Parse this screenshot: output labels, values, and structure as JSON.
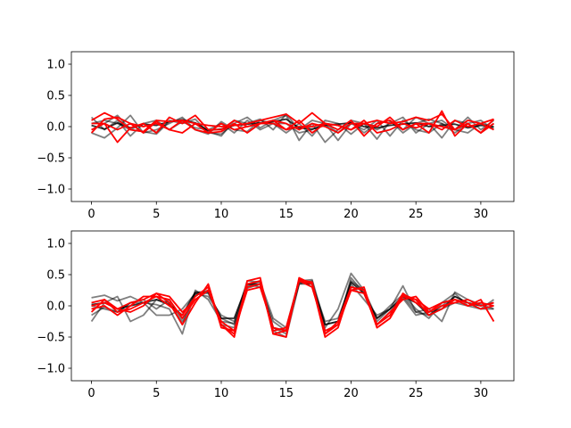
{
  "chart_data": [
    {
      "type": "line",
      "xlim": [
        -1.55,
        32.55
      ],
      "ylim": [
        -1.2,
        1.2
      ],
      "xticks": [
        0,
        5,
        10,
        15,
        20,
        25,
        30
      ],
      "xtick_labels": [
        "0",
        "5",
        "10",
        "15",
        "20",
        "25",
        "30"
      ],
      "yticks": [
        1.0,
        0.5,
        0.0,
        -0.5,
        -1.0
      ],
      "ytick_labels": [
        "1.0",
        "0.5",
        "0.0",
        "−0.5",
        "−1.0"
      ],
      "x": [
        0,
        1,
        2,
        3,
        4,
        5,
        6,
        7,
        8,
        9,
        10,
        11,
        12,
        13,
        14,
        15,
        16,
        17,
        18,
        19,
        20,
        21,
        22,
        23,
        24,
        25,
        26,
        27,
        28,
        29,
        30,
        31
      ],
      "series": [
        {
          "color": "#000000",
          "opacity": 0.5,
          "values": [
            0.15,
            -0.05,
            0.1,
            -0.15,
            0.05,
            -0.1,
            0.1,
            0.05,
            0.12,
            -0.1,
            -0.12,
            0.05,
            0.15,
            -0.02,
            0.1,
            0.18,
            -0.22,
            0.05,
            -0.25,
            -0.05,
            0.1,
            0.05,
            -0.2,
            0.08,
            -0.05,
            0.15,
            0.05,
            -0.18,
            0.1,
            0.05,
            -0.1,
            0.05
          ]
        },
        {
          "color": "#000000",
          "opacity": 0.5,
          "values": [
            -0.1,
            -0.18,
            -0.02,
            0.18,
            -0.1,
            -0.05,
            0.05,
            0.15,
            -0.05,
            -0.12,
            0.08,
            -0.05,
            -0.08,
            0.1,
            0.05,
            0.05,
            -0.1,
            -0.05,
            0.05,
            -0.22,
            0.05,
            -0.05,
            0.1,
            -0.15,
            0.1,
            -0.05,
            -0.1,
            0.05,
            -0.05,
            0.15,
            -0.05,
            0.1
          ]
        },
        {
          "color": "#000000",
          "opacity": 0.5,
          "values": [
            0.05,
            0.1,
            0.05,
            -0.05,
            -0.08,
            -0.12,
            0.08,
            0.12,
            0.05,
            -0.08,
            -0.15,
            0.1,
            0.05,
            0.12,
            -0.05,
            0.2,
            -0.05,
            0.1,
            0.05,
            -0.1,
            0.08,
            -0.1,
            0.05,
            0.1,
            -0.1,
            0.05,
            0.12,
            0.05,
            -0.1,
            0.05,
            0.1,
            -0.05
          ]
        },
        {
          "color": "#000000",
          "opacity": 0.5,
          "values": [
            -0.05,
            0.05,
            0.18,
            -0.05,
            0.05,
            0.1,
            -0.05,
            0.08,
            -0.02,
            -0.05,
            0.05,
            -0.1,
            0.1,
            -0.05,
            0.05,
            -0.1,
            0.05,
            -0.15,
            0.1,
            0.05,
            -0.12,
            0.05,
            -0.05,
            0.05,
            0.15,
            -0.1,
            0.05,
            0.1,
            -0.05,
            -0.1,
            0.05,
            -0.02
          ]
        },
        {
          "color": "#000000",
          "opacity": 0.8,
          "values": [
            0.02,
            -0.04,
            0.06,
            -0.02,
            0.04,
            0.02,
            0.08,
            0.1,
            0.06,
            -0.06,
            -0.04,
            0.02,
            0.04,
            0.06,
            0.08,
            0.12,
            -0.02,
            -0.04,
            0.02,
            0.04,
            0.06,
            0.0,
            -0.02,
            0.02,
            0.04,
            0.06,
            0.0,
            0.02,
            0.04,
            -0.02,
            0.02,
            0.0
          ]
        },
        {
          "color": "#ff0000",
          "opacity": 1,
          "values": [
            0.1,
            0.22,
            0.12,
            -0.05,
            -0.08,
            0.1,
            0.08,
            0.1,
            0.05,
            0.02,
            0.0,
            0.02,
            0.05,
            0.1,
            0.15,
            0.2,
            0.05,
            0.22,
            0.05,
            0.02,
            -0.05,
            0.05,
            0.1,
            0.05,
            0.08,
            0.15,
            0.1,
            0.2,
            -0.05,
            0.1,
            0.05,
            0.12
          ]
        },
        {
          "color": "#ff0000",
          "opacity": 1,
          "values": [
            -0.1,
            0.12,
            0.15,
            0.05,
            0.0,
            0.05,
            -0.05,
            0.1,
            -0.05,
            -0.1,
            -0.08,
            0.05,
            -0.1,
            0.05,
            0.05,
            -0.05,
            0.1,
            -0.1,
            0.05,
            -0.05,
            0.1,
            -0.15,
            0.05,
            0.1,
            -0.05,
            0.05,
            -0.1,
            0.25,
            -0.15,
            0.05,
            -0.1,
            0.12
          ]
        },
        {
          "color": "#ff0000",
          "opacity": 1,
          "values": [
            0.05,
            0.05,
            -0.25,
            -0.02,
            0.05,
            -0.1,
            0.15,
            0.05,
            0.18,
            -0.05,
            -0.05,
            0.1,
            0.0,
            0.05,
            0.1,
            0.05,
            -0.05,
            0.05,
            0.0,
            -0.1,
            0.05,
            0.05,
            0.0,
            0.15,
            -0.05,
            0.05,
            0.05,
            -0.05,
            0.1,
            0.0,
            0.05,
            -0.05
          ]
        },
        {
          "color": "#ff0000",
          "opacity": 1,
          "values": [
            -0.05,
            0.05,
            -0.05,
            0.05,
            -0.1,
            0.08,
            -0.05,
            -0.1,
            0.05,
            -0.1,
            0.05,
            -0.05,
            0.0,
            0.05,
            0.1,
            -0.05,
            0.0,
            0.0,
            0.05,
            0.02,
            -0.05,
            0.1,
            -0.1,
            -0.05,
            0.05,
            -0.02,
            0.05,
            0.0,
            -0.05,
            0.05,
            -0.1,
            0.05
          ]
        }
      ]
    },
    {
      "type": "line",
      "xlim": [
        -1.55,
        32.55
      ],
      "ylim": [
        -1.2,
        1.2
      ],
      "xticks": [
        0,
        5,
        10,
        15,
        20,
        25,
        30
      ],
      "xtick_labels": [
        "0",
        "5",
        "10",
        "15",
        "20",
        "25",
        "30"
      ],
      "yticks": [
        1.0,
        0.5,
        0.0,
        -0.5,
        -1.0
      ],
      "ytick_labels": [
        "1.0",
        "0.5",
        "0.0",
        "−0.5",
        "−1.0"
      ],
      "x": [
        0,
        1,
        2,
        3,
        4,
        5,
        6,
        7,
        8,
        9,
        10,
        11,
        12,
        13,
        14,
        15,
        16,
        17,
        18,
        19,
        20,
        21,
        22,
        23,
        24,
        25,
        26,
        27,
        28,
        29,
        30,
        31
      ],
      "series": [
        {
          "color": "#000000",
          "opacity": 0.5,
          "values": [
            0.13,
            0.17,
            0.08,
            0.15,
            0.05,
            0.02,
            -0.05,
            -0.45,
            0.25,
            0.1,
            -0.25,
            -0.28,
            0.4,
            0.38,
            -0.2,
            -0.35,
            0.42,
            0.3,
            -0.35,
            -0.05,
            0.52,
            0.25,
            -0.25,
            -0.05,
            0.32,
            -0.1,
            -0.05,
            -0.25,
            0.22,
            0.1,
            0.02,
            -0.05
          ]
        },
        {
          "color": "#000000",
          "opacity": 0.5,
          "values": [
            -0.25,
            0.05,
            0.15,
            -0.25,
            -0.15,
            0.1,
            0.05,
            -0.3,
            0.2,
            0.15,
            -0.15,
            -0.25,
            0.35,
            0.3,
            -0.25,
            -0.4,
            0.35,
            0.35,
            -0.25,
            -0.2,
            0.35,
            0.1,
            -0.15,
            -0.05,
            0.12,
            -0.15,
            -0.1,
            -0.05,
            0.05,
            0.0,
            -0.05,
            0.1
          ]
        },
        {
          "color": "#000000",
          "opacity": 0.5,
          "values": [
            0.0,
            -0.05,
            -0.1,
            0.05,
            0.05,
            -0.15,
            -0.15,
            -0.05,
            0.2,
            0.2,
            -0.2,
            -0.3,
            0.28,
            0.35,
            -0.4,
            -0.5,
            0.35,
            0.4,
            -0.4,
            -0.3,
            0.45,
            0.2,
            -0.3,
            -0.1,
            0.15,
            -0.1,
            -0.15,
            0.0,
            0.15,
            0.05,
            -0.05,
            -0.05
          ]
        },
        {
          "color": "#000000",
          "opacity": 0.5,
          "values": [
            -0.15,
            -0.02,
            -0.1,
            0.05,
            0.1,
            -0.05,
            0.1,
            -0.25,
            0.18,
            0.25,
            -0.3,
            -0.35,
            0.32,
            0.4,
            -0.35,
            -0.45,
            0.4,
            0.42,
            -0.3,
            -0.25,
            0.4,
            0.25,
            -0.2,
            0.0,
            0.18,
            -0.05,
            -0.2,
            0.05,
            0.2,
            0.0,
            0.05,
            0.0
          ]
        },
        {
          "color": "#000000",
          "opacity": 0.8,
          "values": [
            0.02,
            0.05,
            -0.05,
            0.0,
            0.05,
            0.1,
            0.02,
            -0.15,
            0.22,
            0.22,
            -0.2,
            -0.2,
            0.35,
            0.35,
            -0.35,
            -0.4,
            0.38,
            0.35,
            -0.3,
            -0.25,
            0.38,
            0.2,
            -0.2,
            -0.05,
            0.15,
            0.05,
            -0.15,
            -0.05,
            0.15,
            0.05,
            0.0,
            0.05
          ]
        },
        {
          "color": "#ff0000",
          "opacity": 1,
          "values": [
            -0.1,
            0.1,
            -0.1,
            -0.05,
            0.05,
            0.15,
            0.1,
            -0.2,
            0.1,
            0.25,
            -0.3,
            -0.5,
            0.4,
            0.45,
            -0.45,
            -0.4,
            0.4,
            0.35,
            -0.5,
            -0.35,
            0.3,
            0.25,
            -0.35,
            -0.2,
            0.18,
            0.1,
            -0.05,
            0.05,
            0.1,
            0.0,
            0.1,
            -0.25
          ]
        },
        {
          "color": "#ff0000",
          "opacity": 1,
          "values": [
            0.0,
            0.05,
            -0.05,
            0.05,
            0.1,
            0.2,
            0.05,
            -0.3,
            0.05,
            0.35,
            -0.35,
            -0.4,
            0.35,
            0.4,
            -0.45,
            -0.5,
            0.45,
            0.35,
            -0.45,
            -0.25,
            0.3,
            0.25,
            -0.3,
            -0.15,
            0.2,
            0.05,
            -0.1,
            0.05,
            0.1,
            0.05,
            -0.05,
            0.0
          ]
        },
        {
          "color": "#ff0000",
          "opacity": 1,
          "values": [
            -0.05,
            0.0,
            -0.15,
            0.0,
            0.15,
            0.15,
            0.0,
            -0.15,
            0.15,
            0.3,
            -0.3,
            -0.45,
            0.3,
            0.35,
            -0.4,
            -0.35,
            0.4,
            0.3,
            -0.4,
            -0.3,
            0.25,
            0.3,
            -0.35,
            -0.2,
            0.15,
            0.1,
            -0.15,
            -0.05,
            0.1,
            0.0,
            0.05,
            0.0
          ]
        },
        {
          "color": "#ff0000",
          "opacity": 1,
          "values": [
            0.05,
            0.1,
            -0.05,
            -0.1,
            0.0,
            0.2,
            0.15,
            -0.1,
            0.1,
            0.25,
            -0.25,
            -0.4,
            0.25,
            0.3,
            -0.35,
            -0.4,
            0.42,
            0.38,
            -0.45,
            -0.3,
            0.25,
            0.2,
            -0.3,
            -0.1,
            0.1,
            0.15,
            -0.1,
            0.0,
            0.05,
            0.1,
            0.0,
            0.05
          ]
        }
      ]
    }
  ]
}
